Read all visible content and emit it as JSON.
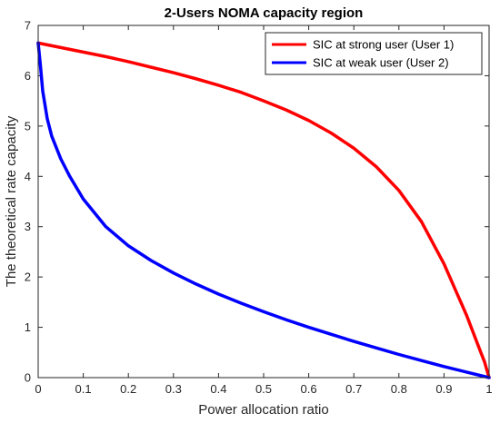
{
  "chart_data": {
    "type": "line",
    "title": "2-Users NOMA capacity region",
    "xlabel": "Power allocation ratio",
    "ylabel": "The theoretical rate capacity",
    "xlim": [
      0,
      1
    ],
    "ylim": [
      0,
      7
    ],
    "xticks": [
      "0",
      "0.1",
      "0.2",
      "0.3",
      "0.4",
      "0.5",
      "0.6",
      "0.7",
      "0.8",
      "0.9",
      "1"
    ],
    "yticks": [
      "0",
      "1",
      "2",
      "3",
      "4",
      "5",
      "6",
      "7"
    ],
    "grid": false,
    "legend_position": "top-right",
    "series": [
      {
        "name": "SIC at strong user (User 1)",
        "color": "#ff0000",
        "x": [
          0,
          0.05,
          0.1,
          0.15,
          0.2,
          0.25,
          0.3,
          0.35,
          0.4,
          0.45,
          0.5,
          0.55,
          0.6,
          0.65,
          0.7,
          0.75,
          0.8,
          0.85,
          0.9,
          0.95,
          0.98,
          0.99,
          1.0
        ],
        "y": [
          6.65,
          6.56,
          6.47,
          6.38,
          6.28,
          6.17,
          6.06,
          5.94,
          5.81,
          5.67,
          5.5,
          5.32,
          5.11,
          4.86,
          4.56,
          4.19,
          3.72,
          3.1,
          2.26,
          1.24,
          0.54,
          0.31,
          0.0
        ]
      },
      {
        "name": "SIC at weak user (User 2)",
        "color": "#0000ff",
        "x": [
          0,
          0.005,
          0.01,
          0.02,
          0.03,
          0.05,
          0.07,
          0.1,
          0.15,
          0.2,
          0.25,
          0.3,
          0.35,
          0.4,
          0.45,
          0.5,
          0.55,
          0.6,
          0.65,
          0.7,
          0.75,
          0.8,
          0.85,
          0.9,
          0.95,
          1.0
        ],
        "y": [
          6.65,
          6.2,
          5.7,
          5.15,
          4.8,
          4.35,
          4.0,
          3.55,
          3.0,
          2.62,
          2.33,
          2.08,
          1.86,
          1.66,
          1.48,
          1.31,
          1.15,
          1.0,
          0.86,
          0.72,
          0.59,
          0.46,
          0.34,
          0.22,
          0.11,
          0.0
        ]
      }
    ]
  }
}
